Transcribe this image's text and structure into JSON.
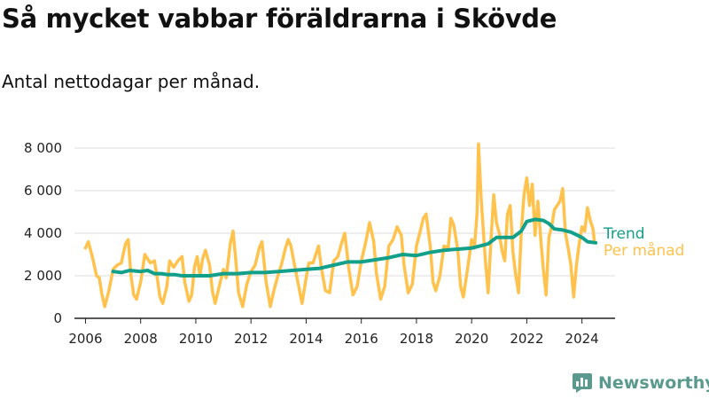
{
  "title": "Så mycket vabbar föräldrarna i Skövde",
  "subtitle": "Antal nettodagar per månad.",
  "brand": "Newsworthy",
  "colors": {
    "trend": "#12a08a",
    "monthly": "#ffc34d",
    "grid": "#dddddd",
    "brand": "#5a9a8e"
  },
  "chart_data": {
    "type": "line",
    "title": "Så mycket vabbar föräldrarna i Skövde",
    "subtitle": "Antal nettodagar per månad.",
    "xlabel": "",
    "ylabel": "",
    "xlim": [
      2005.6,
      2025.2
    ],
    "ylim": [
      0,
      8000
    ],
    "xticks": [
      2006,
      2008,
      2010,
      2012,
      2014,
      2016,
      2018,
      2020,
      2022,
      2024
    ],
    "xtick_labels": [
      "2006",
      "2008",
      "2010",
      "2012",
      "2014",
      "2016",
      "2018",
      "2020",
      "2022",
      "2024"
    ],
    "yticks": [
      0,
      2000,
      4000,
      6000,
      8000
    ],
    "ytick_labels": [
      "0",
      "2 000",
      "4 000",
      "6 000",
      "8 000"
    ],
    "grid": true,
    "legend": "right",
    "series": [
      {
        "name": "Per månad",
        "color": "#ffc34d",
        "points": [
          [
            2006.0,
            3300
          ],
          [
            2006.1,
            3600
          ],
          [
            2006.25,
            2900
          ],
          [
            2006.4,
            2000
          ],
          [
            2006.5,
            1900
          ],
          [
            2006.6,
            1100
          ],
          [
            2006.7,
            550
          ],
          [
            2006.85,
            1300
          ],
          [
            2007.0,
            2300
          ],
          [
            2007.15,
            2500
          ],
          [
            2007.3,
            2600
          ],
          [
            2007.45,
            3500
          ],
          [
            2007.55,
            3700
          ],
          [
            2007.65,
            2000
          ],
          [
            2007.75,
            1100
          ],
          [
            2007.85,
            900
          ],
          [
            2008.0,
            1700
          ],
          [
            2008.15,
            3000
          ],
          [
            2008.25,
            2800
          ],
          [
            2008.35,
            2600
          ],
          [
            2008.5,
            2700
          ],
          [
            2008.6,
            1900
          ],
          [
            2008.7,
            1000
          ],
          [
            2008.8,
            700
          ],
          [
            2008.95,
            1500
          ],
          [
            2009.05,
            2700
          ],
          [
            2009.2,
            2400
          ],
          [
            2009.35,
            2700
          ],
          [
            2009.5,
            2900
          ],
          [
            2009.6,
            1700
          ],
          [
            2009.75,
            800
          ],
          [
            2009.85,
            1100
          ],
          [
            2009.95,
            2400
          ],
          [
            2010.05,
            2900
          ],
          [
            2010.15,
            2000
          ],
          [
            2010.25,
            2800
          ],
          [
            2010.35,
            3200
          ],
          [
            2010.5,
            2500
          ],
          [
            2010.6,
            1300
          ],
          [
            2010.7,
            700
          ],
          [
            2010.85,
            1500
          ],
          [
            2011.0,
            2300
          ],
          [
            2011.1,
            1900
          ],
          [
            2011.25,
            3500
          ],
          [
            2011.35,
            4100
          ],
          [
            2011.45,
            2700
          ],
          [
            2011.55,
            1200
          ],
          [
            2011.7,
            550
          ],
          [
            2011.85,
            1600
          ],
          [
            2012.0,
            2200
          ],
          [
            2012.15,
            2500
          ],
          [
            2012.3,
            3300
          ],
          [
            2012.4,
            3600
          ],
          [
            2012.55,
            1700
          ],
          [
            2012.7,
            550
          ],
          [
            2012.85,
            1400
          ],
          [
            2013.0,
            2100
          ],
          [
            2013.1,
            2500
          ],
          [
            2013.25,
            3300
          ],
          [
            2013.35,
            3700
          ],
          [
            2013.45,
            3400
          ],
          [
            2013.55,
            2700
          ],
          [
            2013.7,
            1700
          ],
          [
            2013.85,
            700
          ],
          [
            2014.0,
            1900
          ],
          [
            2014.1,
            2600
          ],
          [
            2014.25,
            2600
          ],
          [
            2014.35,
            3000
          ],
          [
            2014.45,
            3400
          ],
          [
            2014.55,
            2400
          ],
          [
            2014.7,
            1300
          ],
          [
            2014.85,
            1200
          ],
          [
            2015.0,
            2700
          ],
          [
            2015.15,
            2900
          ],
          [
            2015.3,
            3600
          ],
          [
            2015.4,
            4000
          ],
          [
            2015.55,
            2300
          ],
          [
            2015.7,
            1100
          ],
          [
            2015.85,
            1500
          ],
          [
            2016.0,
            2700
          ],
          [
            2016.15,
            3500
          ],
          [
            2016.3,
            4500
          ],
          [
            2016.45,
            3600
          ],
          [
            2016.55,
            2100
          ],
          [
            2016.7,
            900
          ],
          [
            2016.85,
            1500
          ],
          [
            2017.0,
            3400
          ],
          [
            2017.15,
            3700
          ],
          [
            2017.3,
            4300
          ],
          [
            2017.45,
            3900
          ],
          [
            2017.55,
            2500
          ],
          [
            2017.7,
            1200
          ],
          [
            2017.85,
            1600
          ],
          [
            2018.0,
            3400
          ],
          [
            2018.1,
            3900
          ],
          [
            2018.25,
            4700
          ],
          [
            2018.35,
            4900
          ],
          [
            2018.5,
            3400
          ],
          [
            2018.6,
            1700
          ],
          [
            2018.7,
            1300
          ],
          [
            2018.85,
            2000
          ],
          [
            2019.0,
            3400
          ],
          [
            2019.15,
            3300
          ],
          [
            2019.25,
            4700
          ],
          [
            2019.35,
            4400
          ],
          [
            2019.5,
            3200
          ],
          [
            2019.6,
            1500
          ],
          [
            2019.7,
            1000
          ],
          [
            2019.85,
            2300
          ],
          [
            2020.0,
            3700
          ],
          [
            2020.1,
            3300
          ],
          [
            2020.2,
            5000
          ],
          [
            2020.25,
            8200
          ],
          [
            2020.35,
            5500
          ],
          [
            2020.5,
            2700
          ],
          [
            2020.6,
            1200
          ],
          [
            2020.7,
            3600
          ],
          [
            2020.8,
            5800
          ],
          [
            2020.9,
            4500
          ],
          [
            2021.0,
            4000
          ],
          [
            2021.1,
            3200
          ],
          [
            2021.2,
            2700
          ],
          [
            2021.3,
            4900
          ],
          [
            2021.4,
            5300
          ],
          [
            2021.5,
            3100
          ],
          [
            2021.6,
            2000
          ],
          [
            2021.7,
            1200
          ],
          [
            2021.8,
            4100
          ],
          [
            2021.9,
            5800
          ],
          [
            2022.0,
            6600
          ],
          [
            2022.1,
            5300
          ],
          [
            2022.2,
            6300
          ],
          [
            2022.3,
            3900
          ],
          [
            2022.4,
            5500
          ],
          [
            2022.5,
            3800
          ],
          [
            2022.6,
            2300
          ],
          [
            2022.7,
            1100
          ],
          [
            2022.8,
            3800
          ],
          [
            2022.9,
            4300
          ],
          [
            2023.0,
            5100
          ],
          [
            2023.1,
            5300
          ],
          [
            2023.2,
            5500
          ],
          [
            2023.3,
            6100
          ],
          [
            2023.4,
            4000
          ],
          [
            2023.5,
            3300
          ],
          [
            2023.6,
            2500
          ],
          [
            2023.7,
            1000
          ],
          [
            2023.8,
            2500
          ],
          [
            2023.9,
            3500
          ],
          [
            2024.0,
            4300
          ],
          [
            2024.1,
            4100
          ],
          [
            2024.2,
            5200
          ],
          [
            2024.3,
            4600
          ],
          [
            2024.4,
            4200
          ],
          [
            2024.45,
            3600
          ]
        ]
      },
      {
        "name": "Trend",
        "color": "#12a08a",
        "points": [
          [
            2007.0,
            2200
          ],
          [
            2007.3,
            2150
          ],
          [
            2007.6,
            2250
          ],
          [
            2008.0,
            2200
          ],
          [
            2008.25,
            2250
          ],
          [
            2008.5,
            2100
          ],
          [
            2008.75,
            2100
          ],
          [
            2009.0,
            2050
          ],
          [
            2009.25,
            2050
          ],
          [
            2009.5,
            2000
          ],
          [
            2010.0,
            2000
          ],
          [
            2010.5,
            2000
          ],
          [
            2011.0,
            2100
          ],
          [
            2011.5,
            2100
          ],
          [
            2012.0,
            2150
          ],
          [
            2012.5,
            2150
          ],
          [
            2013.0,
            2200
          ],
          [
            2013.5,
            2250
          ],
          [
            2014.0,
            2300
          ],
          [
            2014.5,
            2350
          ],
          [
            2015.0,
            2500
          ],
          [
            2015.5,
            2650
          ],
          [
            2016.0,
            2650
          ],
          [
            2016.5,
            2750
          ],
          [
            2017.0,
            2850
          ],
          [
            2017.5,
            3000
          ],
          [
            2018.0,
            2950
          ],
          [
            2018.5,
            3100
          ],
          [
            2019.0,
            3200
          ],
          [
            2019.5,
            3250
          ],
          [
            2020.0,
            3300
          ],
          [
            2020.3,
            3400
          ],
          [
            2020.6,
            3500
          ],
          [
            2020.9,
            3800
          ],
          [
            2021.2,
            3800
          ],
          [
            2021.5,
            3800
          ],
          [
            2021.8,
            4100
          ],
          [
            2022.0,
            4550
          ],
          [
            2022.3,
            4650
          ],
          [
            2022.6,
            4600
          ],
          [
            2022.8,
            4450
          ],
          [
            2023.0,
            4200
          ],
          [
            2023.3,
            4150
          ],
          [
            2023.6,
            4050
          ],
          [
            2024.0,
            3800
          ],
          [
            2024.2,
            3600
          ],
          [
            2024.5,
            3550
          ]
        ]
      }
    ]
  }
}
